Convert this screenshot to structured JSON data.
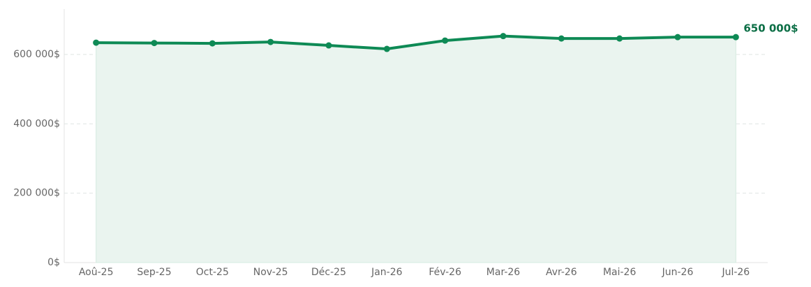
{
  "chart_data": {
    "type": "line",
    "categories": [
      "Aoû-25",
      "Sep-25",
      "Oct-25",
      "Nov-25",
      "Déc-25",
      "Jan-26",
      "Fév-26",
      "Mar-26",
      "Avr-26",
      "Mai-26",
      "Jun-26",
      "Jul-26"
    ],
    "series": [
      {
        "color": "#0e8a55",
        "values": [
          634000,
          633000,
          632000,
          636000,
          626000,
          616000,
          640000,
          653000,
          646000,
          646000,
          650000,
          650000
        ],
        "value_labels": [
          null,
          null,
          null,
          null,
          null,
          null,
          null,
          null,
          null,
          null,
          null,
          "650 000$"
        ]
      }
    ],
    "area_color": "#eaf4ef",
    "ylim": [
      0,
      730000
    ],
    "yticks": [
      {
        "value": 0,
        "label": "0$"
      },
      {
        "value": 200000,
        "label": "200 000$"
      },
      {
        "value": 400000,
        "label": "400 000$"
      },
      {
        "value": 600000,
        "label": "600 000$"
      }
    ],
    "grid": true
  }
}
